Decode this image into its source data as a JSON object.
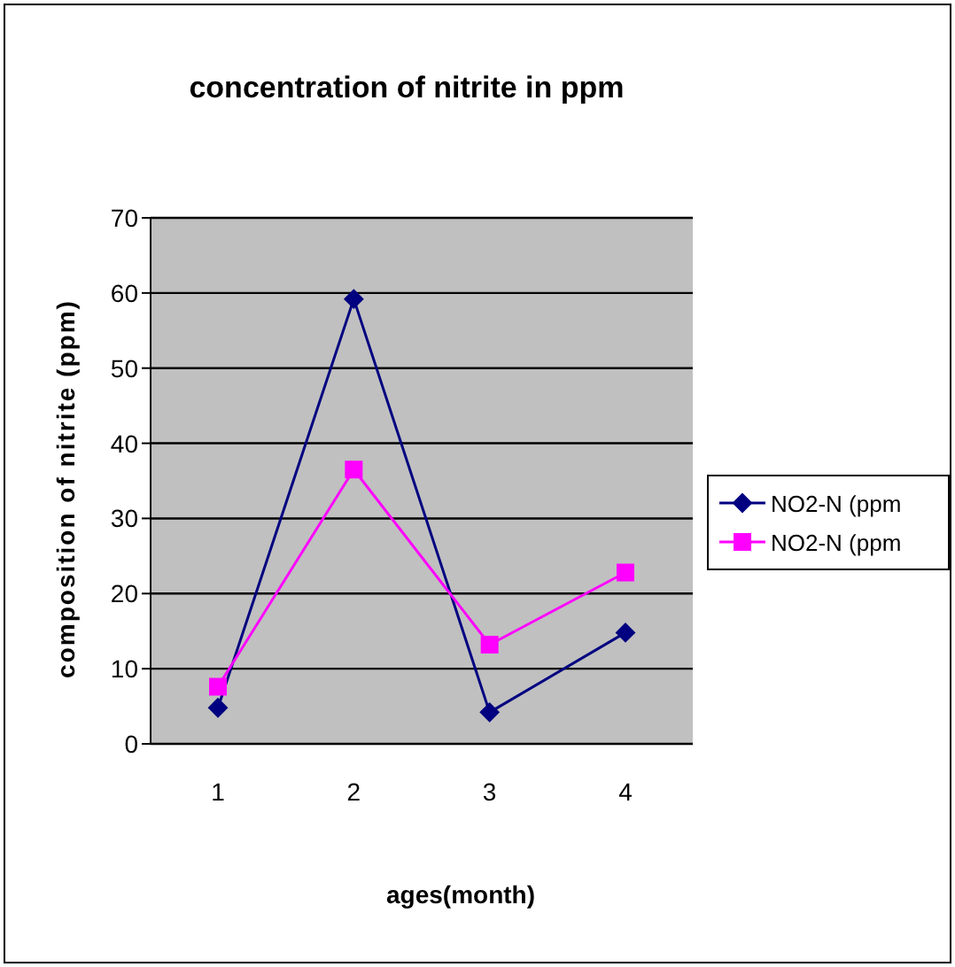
{
  "chart_data": {
    "type": "line",
    "title": "concentration of nitrite in ppm",
    "xlabel": "ages(month)",
    "ylabel": "composition of nitrite (ppm)",
    "categories": [
      "1",
      "2",
      "3",
      "4"
    ],
    "series": [
      {
        "name": "NO2-N (ppm",
        "color": "#000080",
        "marker": "diamond",
        "values": [
          4.8,
          59.2,
          4.2,
          14.8
        ]
      },
      {
        "name": "NO2-N (ppm",
        "color": "#ff00ff",
        "marker": "square",
        "values": [
          7.6,
          36.5,
          13.2,
          22.8
        ]
      }
    ],
    "ylim": [
      0,
      70
    ],
    "yticks": [
      0,
      10,
      20,
      30,
      40,
      50,
      60,
      70
    ],
    "grid": "y",
    "legend": "right",
    "line_style": "solid"
  }
}
